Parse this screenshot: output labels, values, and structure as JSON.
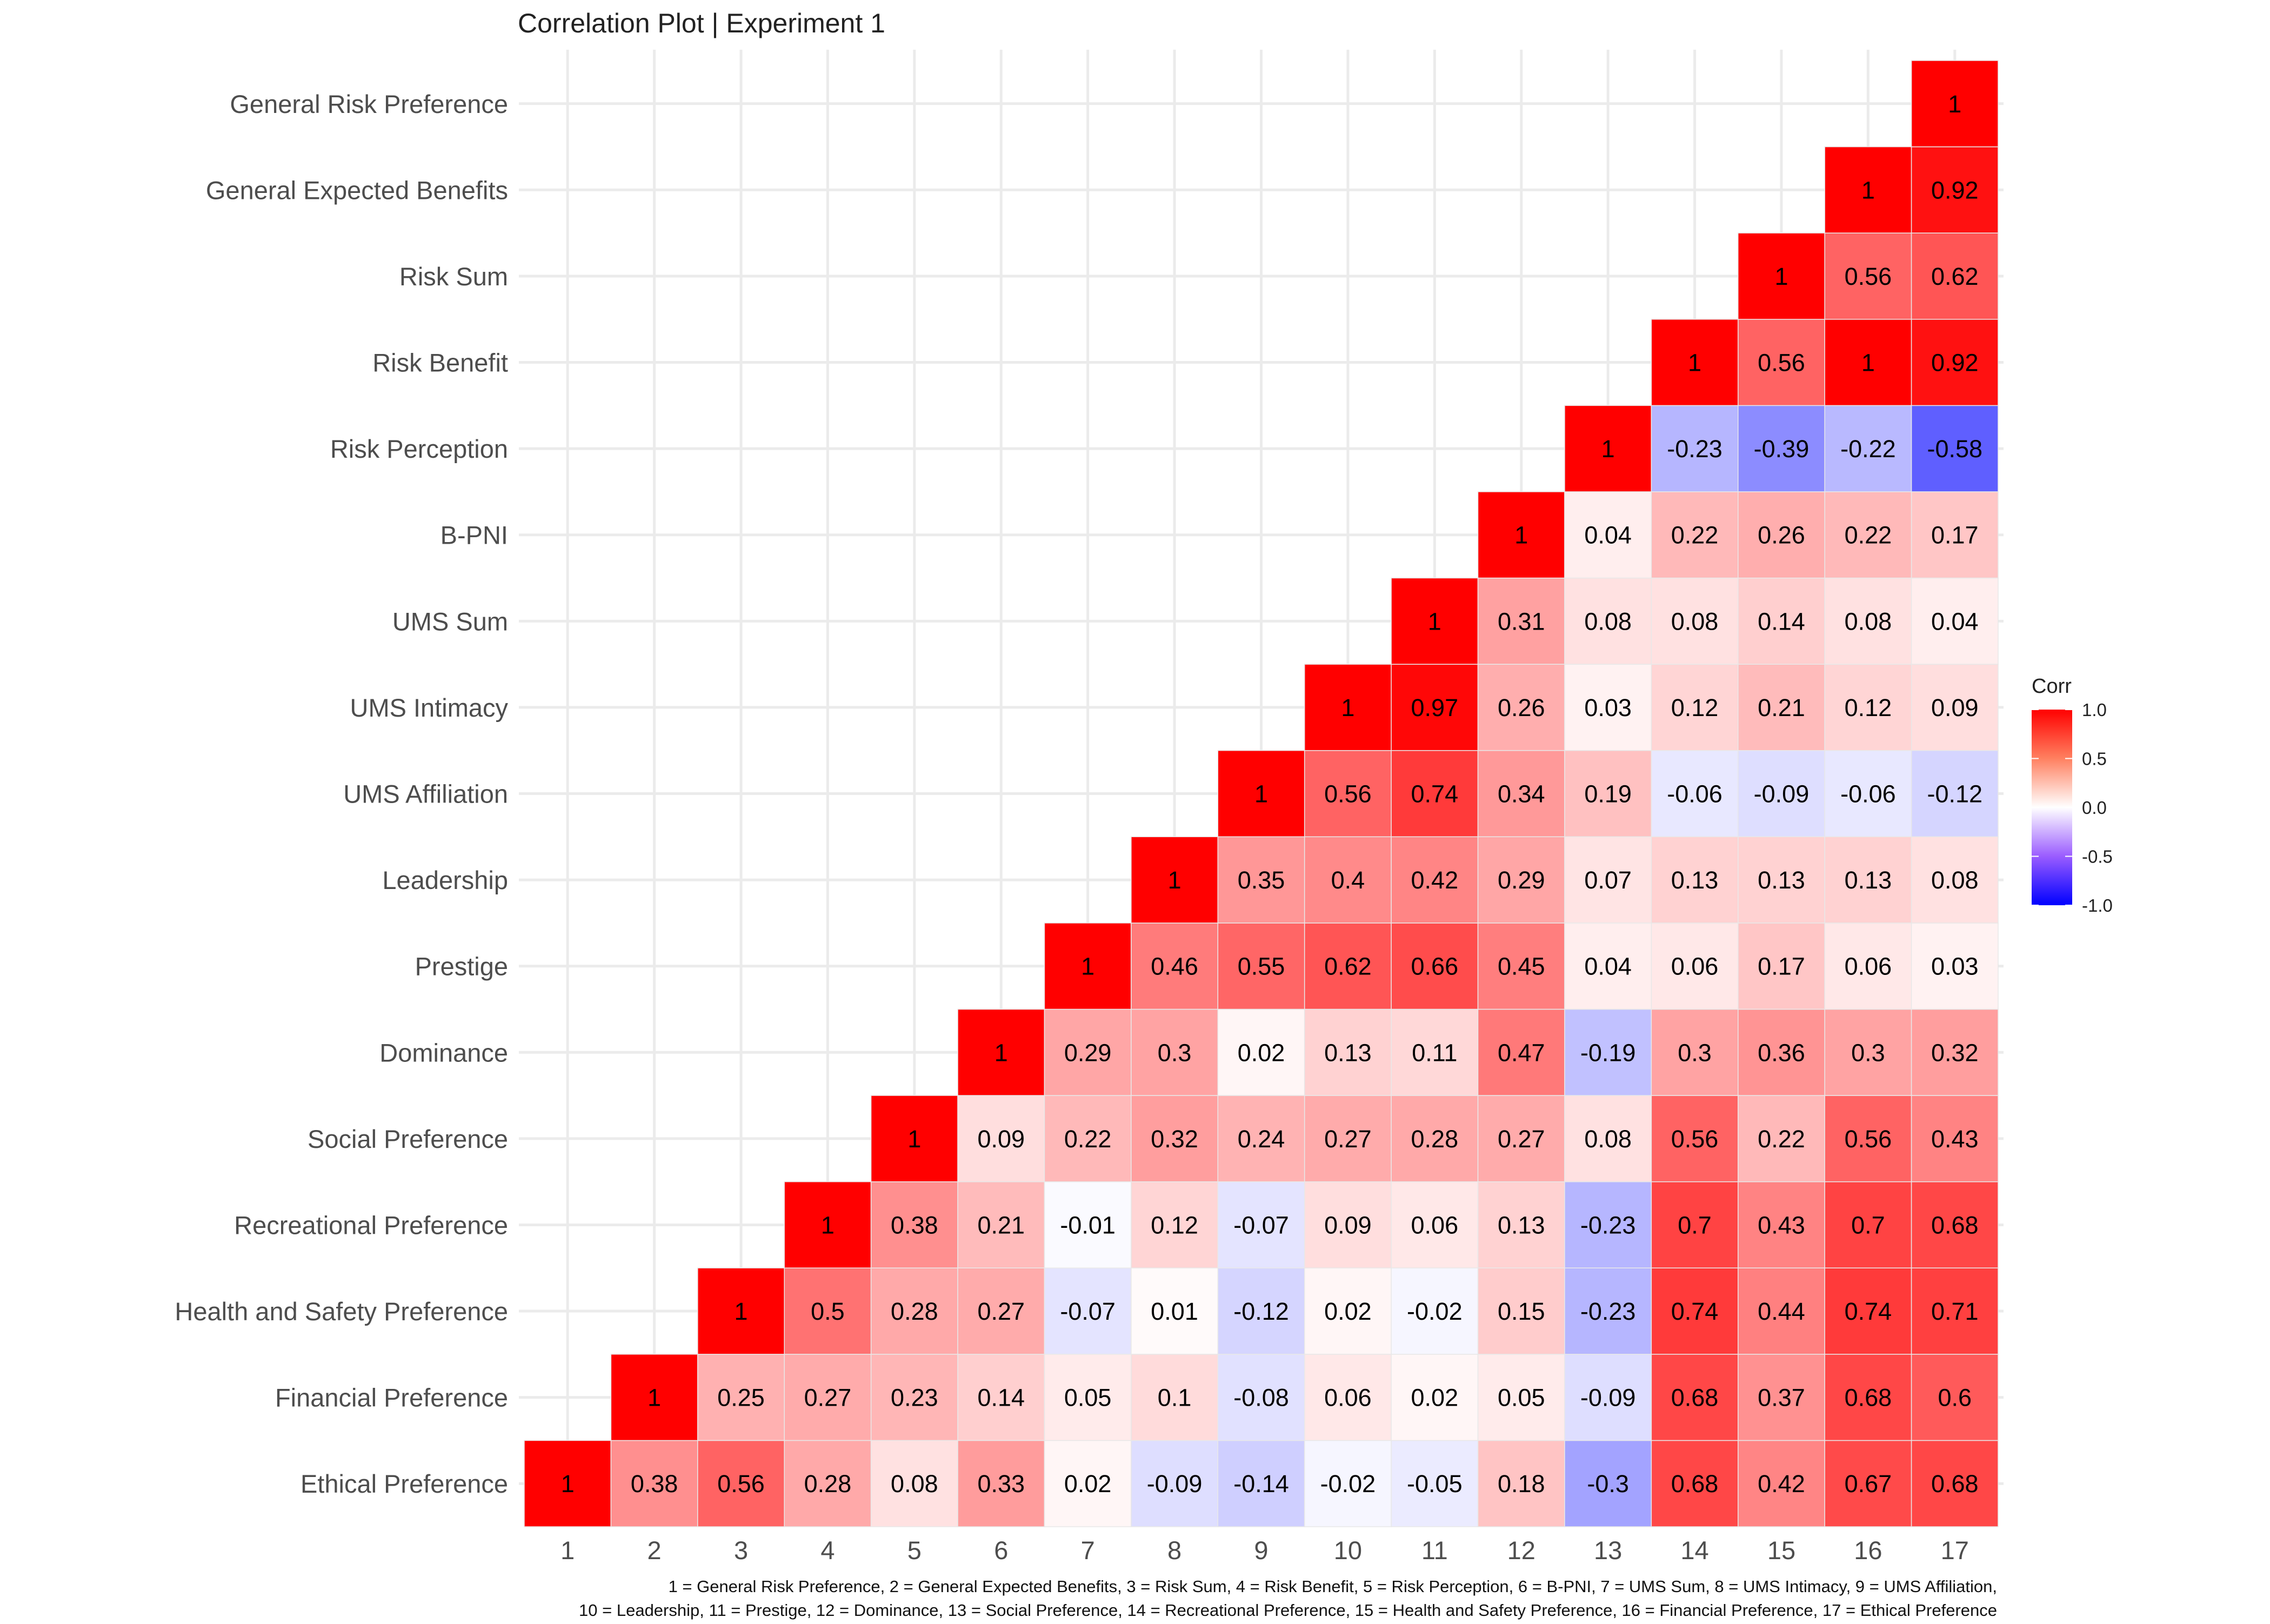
{
  "chart_data": {
    "type": "heatmap",
    "title": "Correlation Plot | Experiment 1",
    "x_categories": [
      "1",
      "2",
      "3",
      "4",
      "5",
      "6",
      "7",
      "8",
      "9",
      "10",
      "11",
      "12",
      "13",
      "14",
      "15",
      "16",
      "17"
    ],
    "y_categories": [
      "Ethical Preference",
      "Financial Preference",
      "Health and Safety Preference",
      "Recreational Preference",
      "Social Preference",
      "Dominance",
      "Prestige",
      "Leadership",
      "UMS Affiliation",
      "UMS Intimacy",
      "UMS Sum",
      "B-PNI",
      "Risk Perception",
      "Risk Benefit",
      "Risk Sum",
      "General Expected Benefits",
      "General Risk Preference"
    ],
    "values": [
      [
        1,
        0.38,
        0.56,
        0.28,
        0.08,
        0.33,
        0.02,
        -0.09,
        -0.14,
        -0.02,
        -0.05,
        0.18,
        -0.3,
        0.68,
        0.42,
        0.67,
        0.68
      ],
      [
        null,
        1,
        0.25,
        0.27,
        0.23,
        0.14,
        0.05,
        0.1,
        -0.08,
        0.06,
        0.02,
        0.05,
        -0.09,
        0.68,
        0.37,
        0.68,
        0.6
      ],
      [
        null,
        null,
        1,
        0.5,
        0.28,
        0.27,
        -0.07,
        0.01,
        -0.12,
        0.02,
        -0.02,
        0.15,
        -0.23,
        0.74,
        0.44,
        0.74,
        0.71
      ],
      [
        null,
        null,
        null,
        1,
        0.38,
        0.21,
        -0.01,
        0.12,
        -0.07,
        0.09,
        0.06,
        0.13,
        -0.23,
        0.7,
        0.43,
        0.7,
        0.68
      ],
      [
        null,
        null,
        null,
        null,
        1,
        0.09,
        0.22,
        0.32,
        0.24,
        0.27,
        0.28,
        0.27,
        0.08,
        0.56,
        0.22,
        0.56,
        0.43
      ],
      [
        null,
        null,
        null,
        null,
        null,
        1,
        0.29,
        0.3,
        0.02,
        0.13,
        0.11,
        0.47,
        -0.19,
        0.3,
        0.36,
        0.3,
        0.32
      ],
      [
        null,
        null,
        null,
        null,
        null,
        null,
        1,
        0.46,
        0.55,
        0.62,
        0.66,
        0.45,
        0.04,
        0.06,
        0.17,
        0.06,
        0.03
      ],
      [
        null,
        null,
        null,
        null,
        null,
        null,
        null,
        1,
        0.35,
        0.4,
        0.42,
        0.29,
        0.07,
        0.13,
        0.13,
        0.13,
        0.08
      ],
      [
        null,
        null,
        null,
        null,
        null,
        null,
        null,
        null,
        1,
        0.56,
        0.74,
        0.34,
        0.19,
        -0.06,
        -0.09,
        -0.06,
        -0.12
      ],
      [
        null,
        null,
        null,
        null,
        null,
        null,
        null,
        null,
        null,
        1,
        0.97,
        0.26,
        0.03,
        0.12,
        0.21,
        0.12,
        0.09
      ],
      [
        null,
        null,
        null,
        null,
        null,
        null,
        null,
        null,
        null,
        null,
        1,
        0.31,
        0.08,
        0.08,
        0.14,
        0.08,
        0.04
      ],
      [
        null,
        null,
        null,
        null,
        null,
        null,
        null,
        null,
        null,
        null,
        null,
        1,
        0.04,
        0.22,
        0.26,
        0.22,
        0.17
      ],
      [
        null,
        null,
        null,
        null,
        null,
        null,
        null,
        null,
        null,
        null,
        null,
        null,
        1,
        -0.23,
        -0.39,
        -0.22,
        -0.58
      ],
      [
        null,
        null,
        null,
        null,
        null,
        null,
        null,
        null,
        null,
        null,
        null,
        null,
        null,
        1,
        0.56,
        1,
        0.92
      ],
      [
        null,
        null,
        null,
        null,
        null,
        null,
        null,
        null,
        null,
        null,
        null,
        null,
        null,
        null,
        1,
        0.56,
        0.62
      ],
      [
        null,
        null,
        null,
        null,
        null,
        null,
        null,
        null,
        null,
        null,
        null,
        null,
        null,
        null,
        null,
        1,
        0.92
      ],
      [
        null,
        null,
        null,
        null,
        null,
        null,
        null,
        null,
        null,
        null,
        null,
        null,
        null,
        null,
        null,
        null,
        1
      ]
    ],
    "legend": {
      "title": "Corr",
      "ticks": [
        "1.0",
        "0.5",
        "0.0",
        "-0.5",
        "-1.0"
      ],
      "range": [
        -1,
        1
      ],
      "placement": "right",
      "colors": {
        "low": "#0000ff",
        "mid": "#ffffff",
        "high": "#ff0000"
      }
    },
    "caption_lines": [
      "1 = General Risk Preference, 2 = General Expected Benefits, 3 = Risk Sum, 4 = Risk Benefit, 5 = Risk Perception, 6 = B-PNI, 7 = UMS Sum, 8 = UMS Intimacy, 9 = UMS Affiliation,",
      "10 = Leadership, 11 = Prestige, 12 = Dominance, 13 = Social Preference, 14 = Recreational Preference, 15 = Health and Safety Preference, 16 = Financial Preference, 17 = Ethical Preference"
    ],
    "grid": true
  }
}
